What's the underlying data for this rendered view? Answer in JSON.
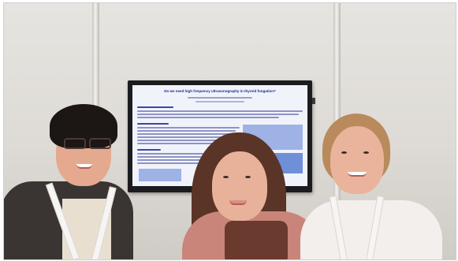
{
  "scene": {
    "description_type": "photo",
    "screen": {
      "poster_title": "Do we need high frequency ultrasonography in thyroid fungation?"
    }
  },
  "colors": {
    "wall": "#e2dfda",
    "monitor_bezel": "#1c1c1f",
    "poster_bg": "#f1f3fb",
    "poster_accent": "#1d2a8c"
  }
}
